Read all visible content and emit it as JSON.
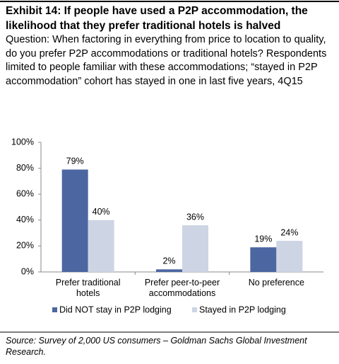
{
  "chart_data": {
    "type": "bar",
    "title": "Exhibit 14: If people have used a P2P accommodation, the likelihood that they prefer traditional hotels is halved",
    "subtitle": "Question: When factoring in everything from price to location to quality, do you prefer P2P accommodations or traditional hotels? Respondents limited to people familiar with these accommodations; “stayed in P2P accommodation” cohort has stayed in one in last five years, 4Q15",
    "categories": [
      "Prefer traditional hotels",
      "Prefer peer-to-peer accommodations",
      "No preference"
    ],
    "series": [
      {
        "name": "Did NOT stay in P2P lodging",
        "color": "#4c66a1",
        "values": [
          79,
          2,
          19
        ],
        "value_labels": [
          "79%",
          "2%",
          "19%"
        ]
      },
      {
        "name": "Stayed in P2P lodging",
        "color": "#cdd4e4",
        "values": [
          40,
          36,
          24
        ],
        "value_labels": [
          "40%",
          "36%",
          "24%"
        ]
      }
    ],
    "ylim": [
      0,
      100
    ],
    "yticks": [
      {
        "value": 0,
        "label": "0%"
      },
      {
        "value": 20,
        "label": "20%"
      },
      {
        "value": 40,
        "label": "40%"
      },
      {
        "value": 60,
        "label": "60%"
      },
      {
        "value": 80,
        "label": "80%"
      },
      {
        "value": 100,
        "label": "100%"
      }
    ],
    "legend": "bottom",
    "source": "Source: Survey of 2,000 US consumers – Goldman Sachs Global Investment Research."
  }
}
